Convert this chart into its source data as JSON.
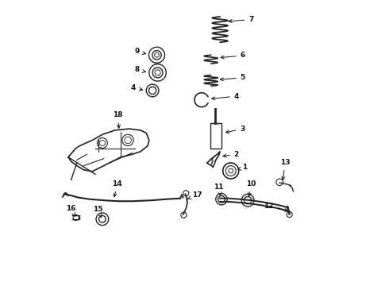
{
  "background_color": "#ffffff",
  "fig_width": 4.9,
  "fig_height": 3.6,
  "dpi": 100,
  "line_color": "#222222",
  "label_color": "#111111"
}
